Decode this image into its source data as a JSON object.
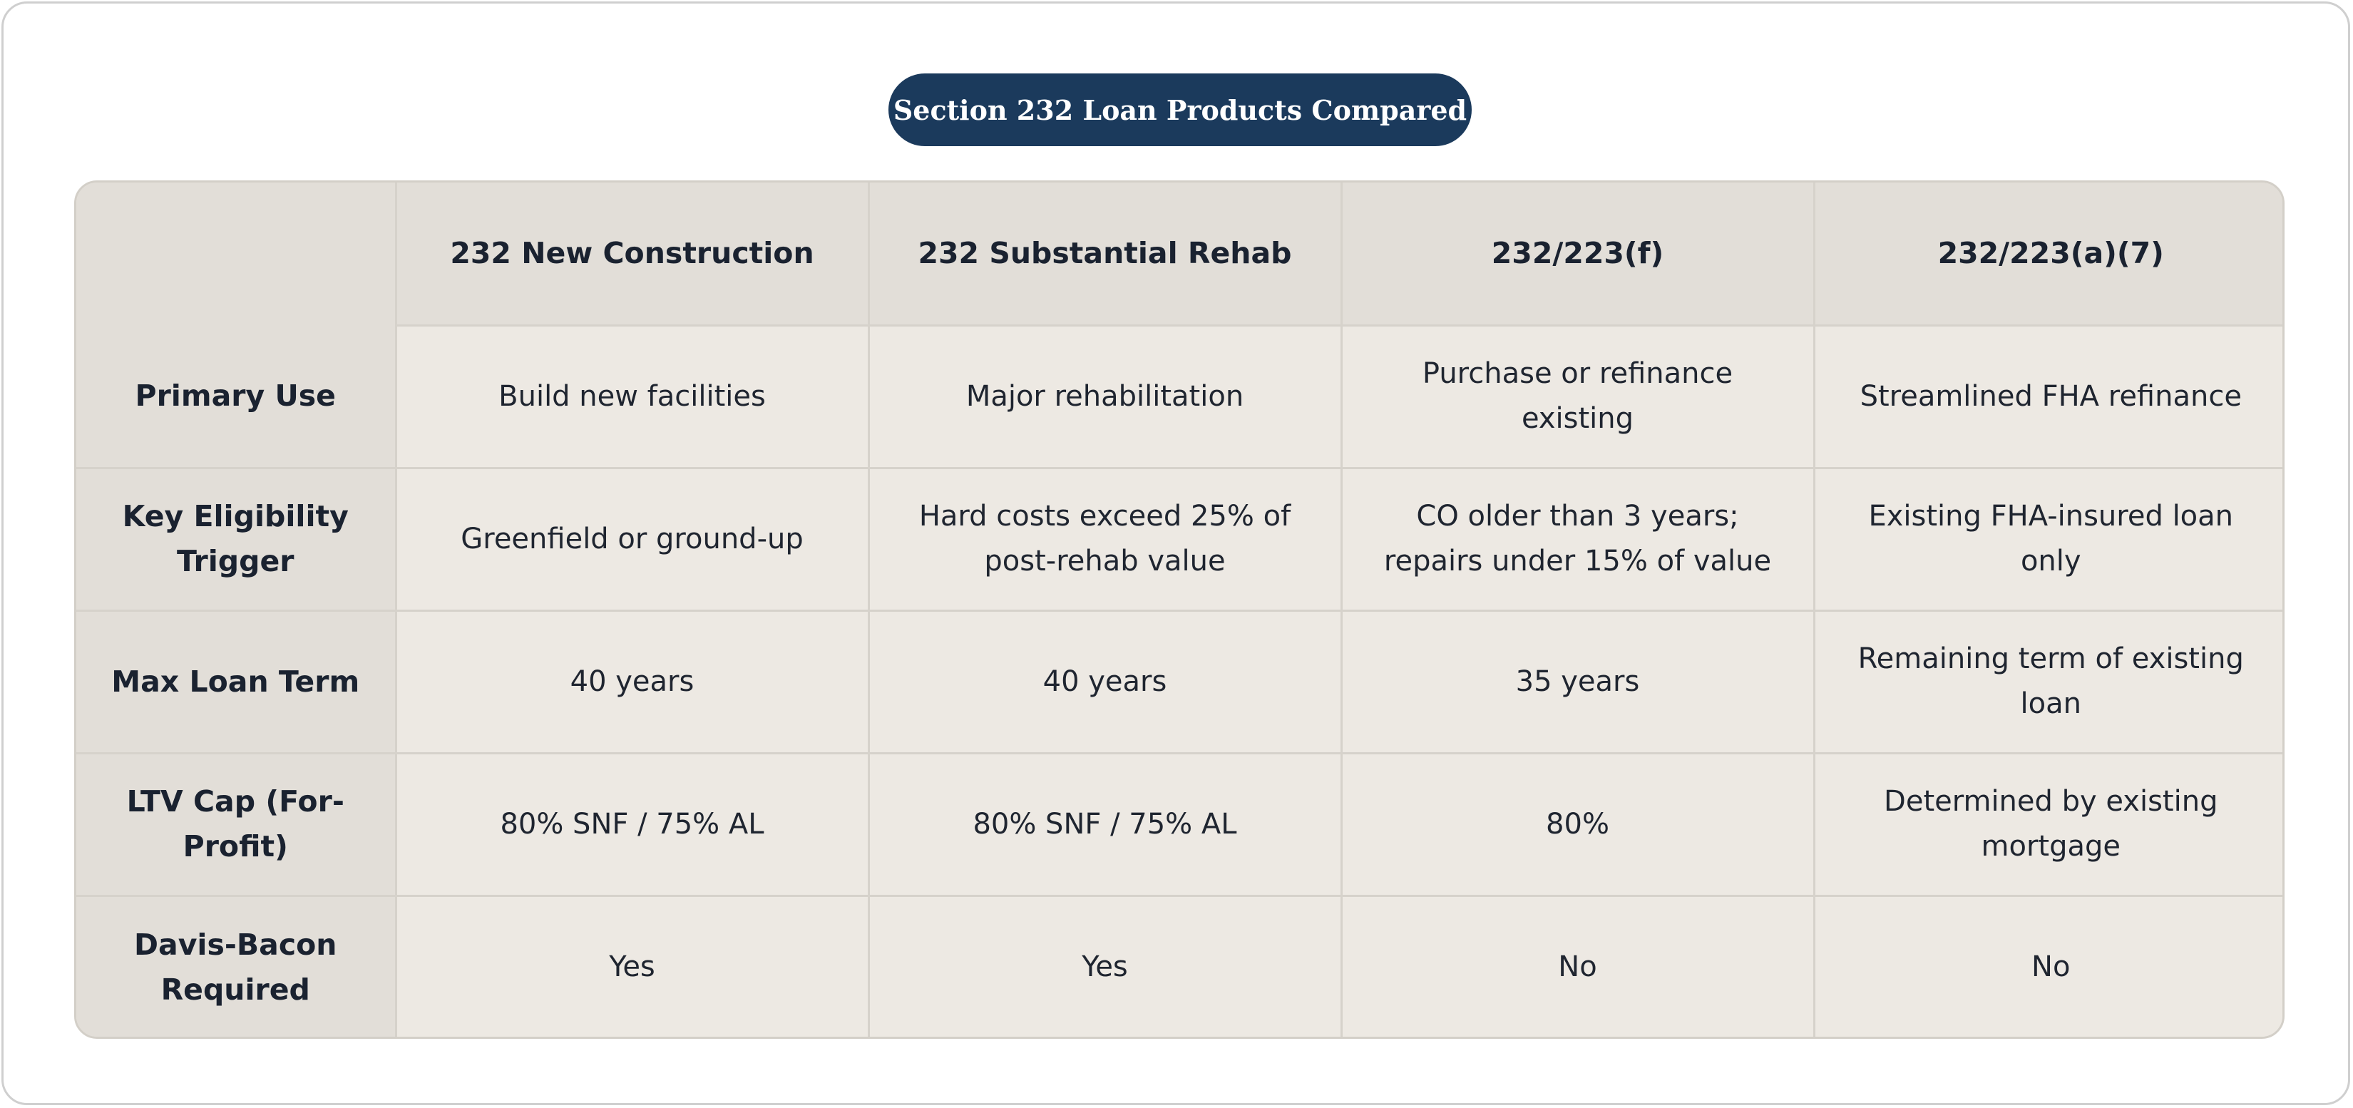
{
  "title": "Section 232 Loan Products Compared",
  "table": {
    "corner": "",
    "columns": [
      "232 New Construction",
      "232 Substantial Rehab",
      "232/223(f)",
      "232/223(a)(7)"
    ],
    "rows": [
      {
        "label": "Primary Use",
        "cells": [
          "Build new facilities",
          "Major rehabilitation",
          "Purchase or refinance existing",
          "Streamlined FHA refinance"
        ]
      },
      {
        "label": "Key Eligibility Trigger",
        "cells": [
          "Greenfield or ground-up",
          "Hard costs exceed 25% of post-rehab value",
          "CO older than 3 years; repairs under 15% of value",
          "Existing FHA-insured loan only"
        ]
      },
      {
        "label": "Max Loan Term",
        "cells": [
          "40 years",
          "40 years",
          "35 years",
          "Remaining term of existing loan"
        ]
      },
      {
        "label": "LTV Cap (For-Profit)",
        "cells": [
          "80% SNF / 75% AL",
          "80% SNF / 75% AL",
          "80%",
          "Determined by existing mortgage"
        ]
      },
      {
        "label": "Davis-Bacon Required",
        "cells": [
          "Yes",
          "Yes",
          "No",
          "No"
        ]
      }
    ]
  },
  "colors": {
    "title_bg": "#1b3a5c",
    "header_bg": "#e2ded8",
    "cell_bg": "#ede9e3",
    "border": "#d6d2cb"
  }
}
